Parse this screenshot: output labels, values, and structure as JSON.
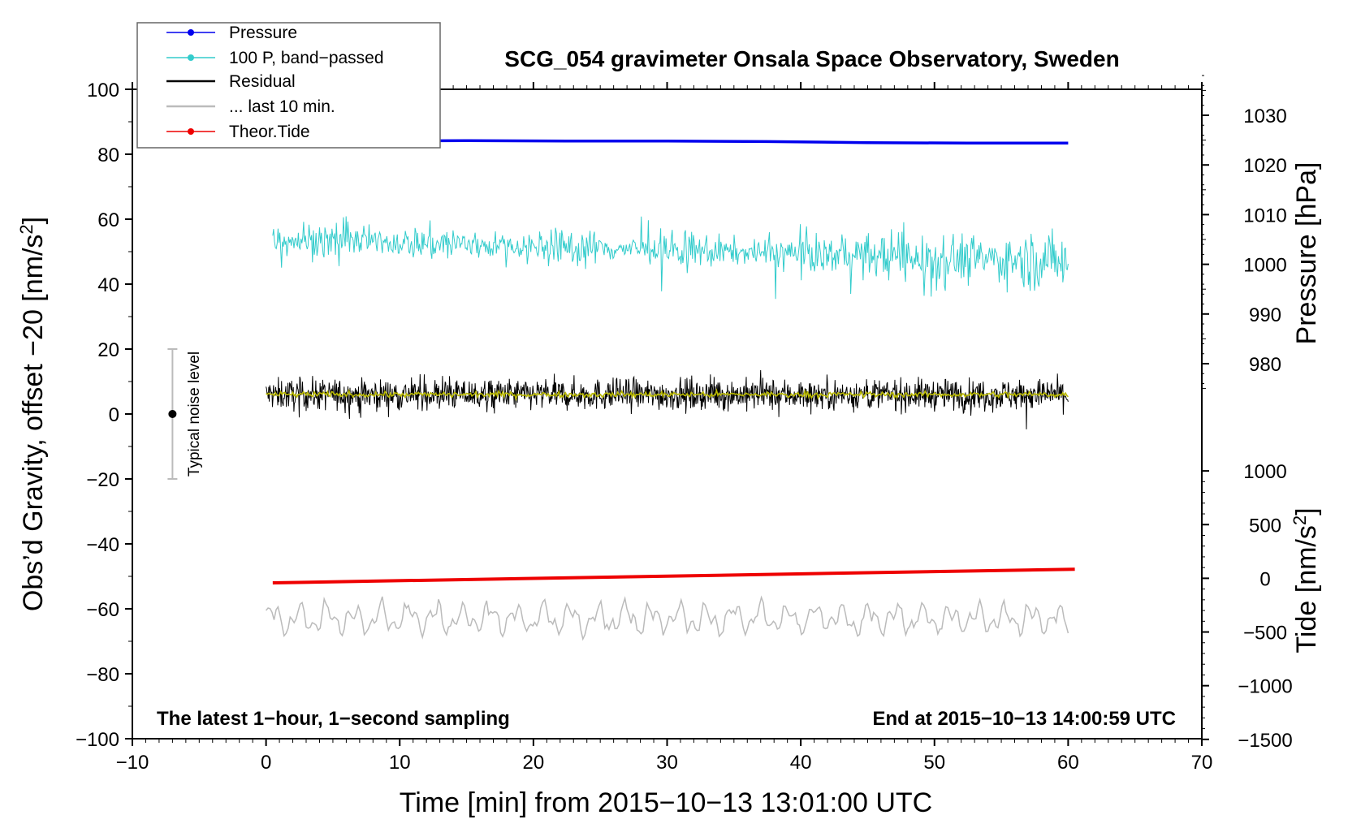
{
  "chart_data": {
    "type": "line",
    "title": "SCG_054 gravimeter Onsala Space Observatory, Sweden",
    "xlabel": "Time [min] from 2015−10−13 13:01:00 UTC",
    "ylabel_left": "Obs’d Gravity, offset −20 [nm/s²]",
    "ylabel_left_main": "Obs’d Gravity, offset −20 [nm/s",
    "ylabel_left_sup": "2",
    "ylabel_left_end": "]",
    "ylabel_pressure": "Pressure [hPa]",
    "ylabel_tide_main": "Tide [nm/s",
    "ylabel_tide_sup": "2",
    "ylabel_tide_end": "]",
    "xlim": [
      -10,
      70
    ],
    "ylim": [
      -100,
      100
    ],
    "x_ticks": [
      "−10",
      "0",
      "10",
      "20",
      "30",
      "40",
      "50",
      "60",
      "70"
    ],
    "x_tick_values": [
      -10,
      0,
      10,
      20,
      30,
      40,
      50,
      60,
      70
    ],
    "y_ticks": [
      "100",
      "80",
      "60",
      "40",
      "20",
      "0",
      "−20",
      "−40",
      "−60",
      "−80",
      "−100"
    ],
    "y_tick_values": [
      100,
      80,
      60,
      40,
      20,
      0,
      -20,
      -40,
      -60,
      -80,
      -100
    ],
    "pressure_axis": {
      "ticks": [
        "1030",
        "1020",
        "1010",
        "1000",
        "990",
        "980"
      ],
      "tick_values": [
        1030,
        1020,
        1010,
        1000,
        990,
        980
      ],
      "gravity_at_1030": 92,
      "gravity_per_hpa": 1.53
    },
    "tide_axis": {
      "ticks": [
        "1000",
        "500",
        "0",
        "−500",
        "−1000",
        "−1500"
      ],
      "tick_values": [
        1000,
        500,
        0,
        -500,
        -1000,
        -1500
      ],
      "gravity_at_0": -50.6,
      "gravity_per_unit": 0.03307
    },
    "legend": [
      {
        "label": "Pressure",
        "color": "#0000ee",
        "marker": true
      },
      {
        "label": "100 P, band−passed",
        "color": "#33cccc",
        "marker": true
      },
      {
        "label": "Residual",
        "color": "#000000",
        "marker": false
      },
      {
        "label": "... last 10 min.",
        "color": "#bbbbbb",
        "marker": false
      },
      {
        "label": "Theor.Tide",
        "color": "#ee0000",
        "marker": true
      }
    ],
    "series": [
      {
        "name": "Pressure",
        "color": "#0000ee",
        "x_range": [
          0,
          60
        ],
        "values_hpa": [
          1024.7,
          1024.8,
          1024.9,
          1024.8,
          1024.8,
          1024.7,
          1024.5,
          1024.4,
          1024.4
        ]
      },
      {
        "name": "100 P, band−passed",
        "color": "#33cccc",
        "x_range": [
          0.5,
          60
        ],
        "level_start": 54,
        "level_end": 47
      },
      {
        "name": "Residual",
        "color": "#000000",
        "x_range": [
          0,
          60
        ],
        "level": 6
      },
      {
        "name": "Residual (smoothed)",
        "color": "#bbbb00",
        "x_range": [
          0,
          60
        ],
        "level": 6
      },
      {
        "name": "Theor.Tide",
        "color": "#ee0000",
        "x_range": [
          0.5,
          60.5
        ],
        "values_gravity": [
          -52,
          -47.8
        ]
      },
      {
        "name": "... last 10 min.",
        "color": "#bbbbbb",
        "x_range": [
          0,
          60
        ],
        "level": -63
      }
    ],
    "noise_bar": {
      "label": "Typical noise level",
      "x": -7,
      "y": 0,
      "range": [
        -20,
        20
      ]
    },
    "annotation_left": "The latest 1−hour, 1−second sampling",
    "annotation_right": "End at 2015−10−13 14:00:59 UTC"
  }
}
